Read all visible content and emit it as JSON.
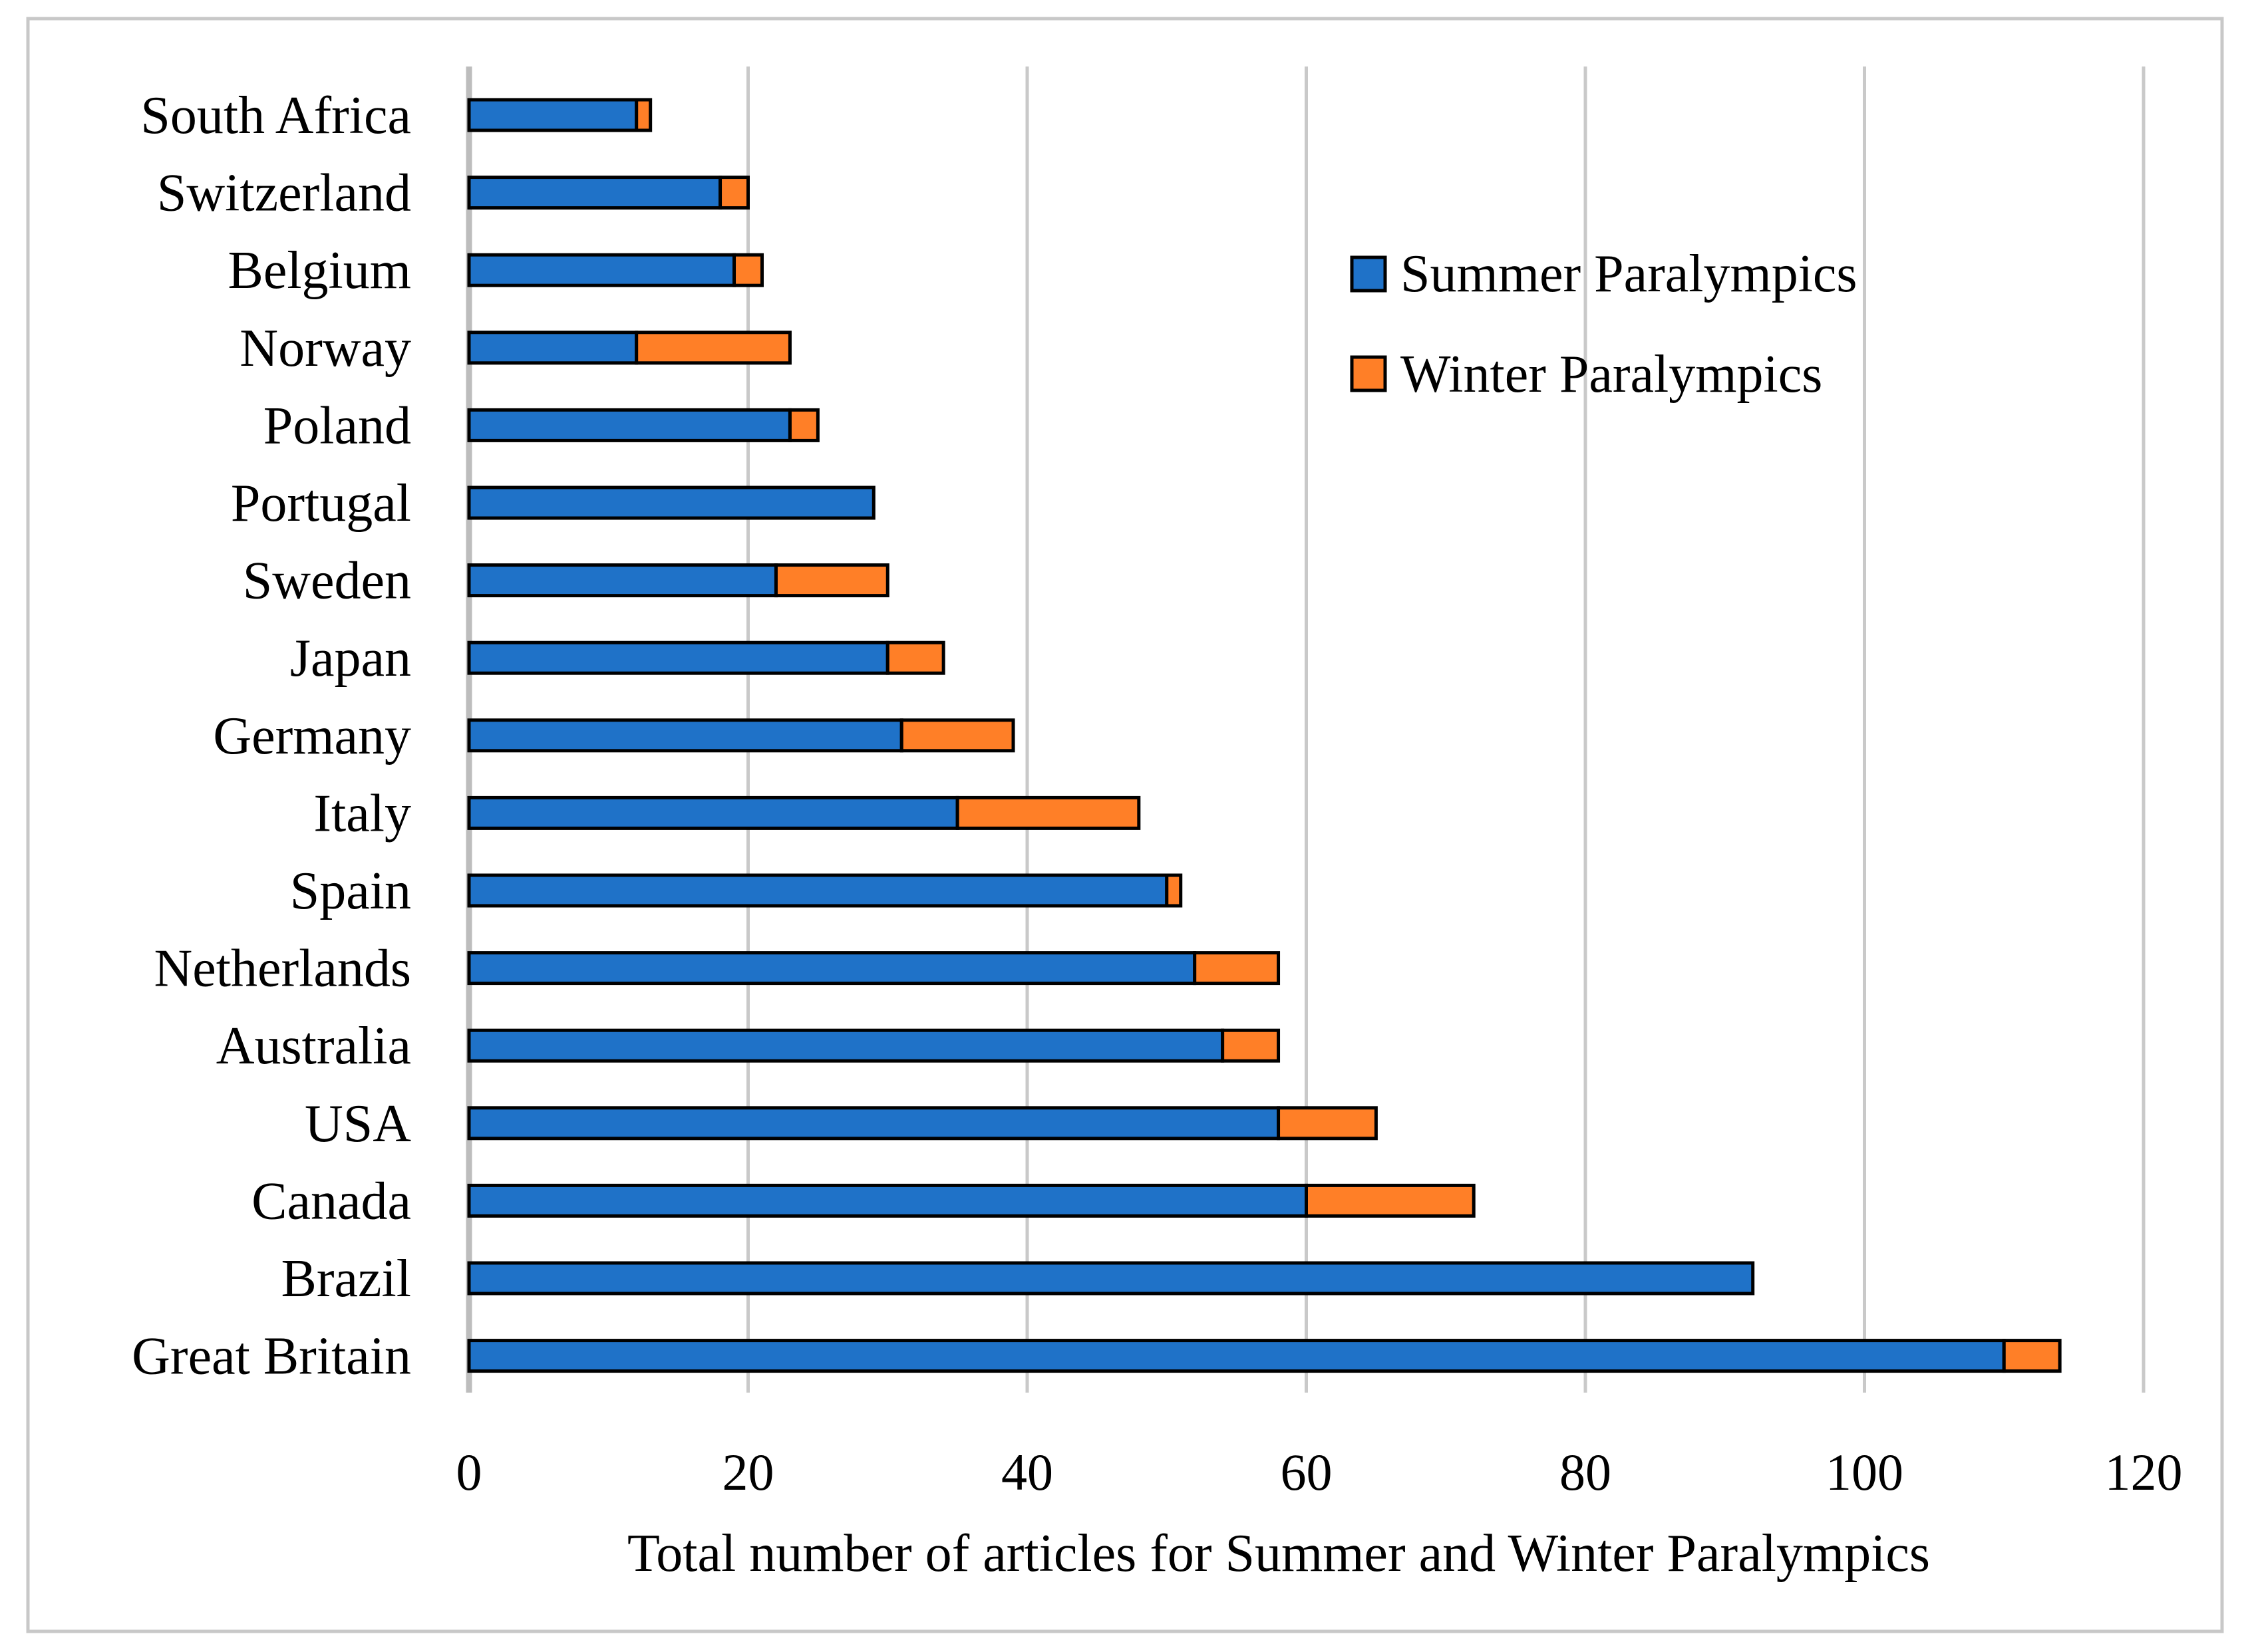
{
  "chart_data": {
    "type": "bar",
    "orientation": "horizontal",
    "stacked": true,
    "title": "",
    "xlabel": "Total number of articles for Summer and Winter Paralympics",
    "ylabel": "",
    "xlim": [
      0,
      120
    ],
    "x_ticks": [
      "0",
      "20",
      "40",
      "60",
      "80",
      "100",
      "120"
    ],
    "grid": "vertical",
    "legend_position": "upper-right",
    "categories": [
      "South Africa",
      "Switzerland",
      "Belgium",
      "Norway",
      "Poland",
      "Portugal",
      "Sweden",
      "Japan",
      "Germany",
      "Italy",
      "Spain",
      "Netherlands",
      "Australia",
      "USA",
      "Canada",
      "Brazil",
      "Great Britain"
    ],
    "series": [
      {
        "name": "Summer Paralympics",
        "color": "#1f72c8",
        "values": [
          12,
          18,
          19,
          12,
          23,
          29,
          22,
          30,
          31,
          35,
          50,
          52,
          54,
          58,
          60,
          92,
          110
        ]
      },
      {
        "name": "Winter Paralympics",
        "color": "#ff7f27",
        "values": [
          1,
          2,
          2,
          11,
          2,
          0,
          8,
          4,
          8,
          13,
          1,
          6,
          4,
          7,
          12,
          0,
          4
        ]
      }
    ]
  }
}
